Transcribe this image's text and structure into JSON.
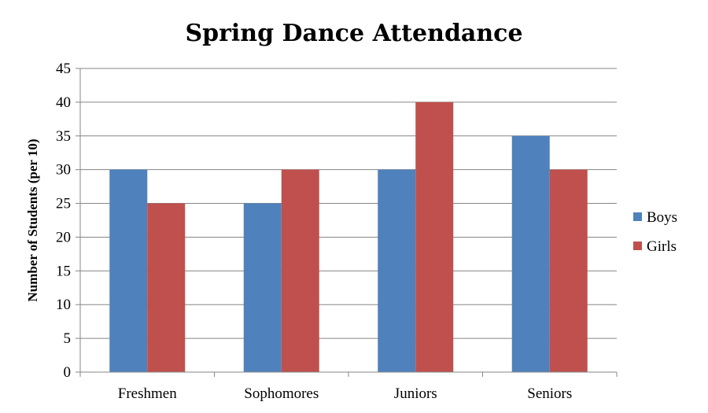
{
  "chart_data": {
    "type": "bar",
    "title": "Spring Dance Attendance",
    "xlabel": "",
    "ylabel": "Number of Students (per 10)",
    "categories": [
      "Freshmen",
      "Sophomores",
      "Juniors",
      "Seniors"
    ],
    "series": [
      {
        "name": "Boys",
        "color": "#4F81BD",
        "values": [
          30,
          25,
          30,
          35
        ]
      },
      {
        "name": "Girls",
        "color": "#C0504D",
        "values": [
          25,
          30,
          40,
          30
        ]
      }
    ],
    "ylim": [
      0,
      45
    ],
    "yticks": [
      0,
      5,
      10,
      15,
      20,
      25,
      30,
      35,
      40,
      45
    ],
    "grid": true,
    "legend_position": "right"
  }
}
